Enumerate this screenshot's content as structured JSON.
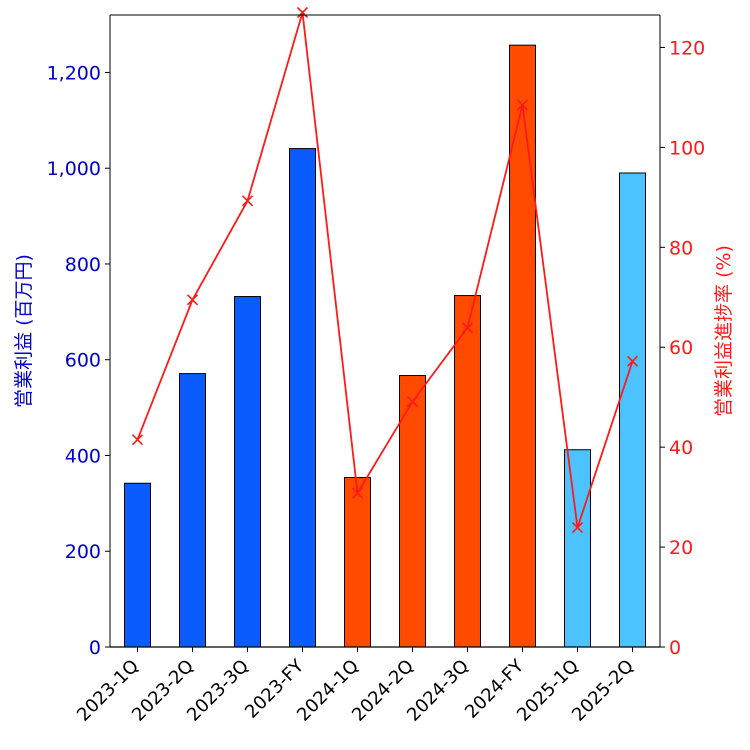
{
  "chart_data": {
    "type": "bar",
    "categories": [
      "2023-1Q",
      "2023-2Q",
      "2023-3Q",
      "2023-FY",
      "2024-1Q",
      "2024-2Q",
      "2024-3Q",
      "2024-FY",
      "2025-1Q",
      "2025-2Q"
    ],
    "series": [
      {
        "name": "営業利益 (百万円)",
        "axis": "left",
        "chart_type": "bar",
        "values": [
          342,
          571,
          732,
          1041,
          354,
          567,
          734,
          1257,
          412,
          990
        ],
        "bar_colors": [
          "#0a5cff",
          "#0a5cff",
          "#0a5cff",
          "#0a5cff",
          "#ff4a00",
          "#ff4a00",
          "#ff4a00",
          "#ff4a00",
          "#4cc3ff",
          "#4cc3ff"
        ]
      },
      {
        "name": "営業利益進捗率 (%)",
        "axis": "right",
        "chart_type": "line",
        "marker": "x",
        "color": "#ff1a1a",
        "values": [
          41.5,
          69.5,
          89.3,
          127,
          30.8,
          49.1,
          63.9,
          108.5,
          23.9,
          57.2
        ]
      }
    ],
    "left_axis": {
      "label": "営業利益 (百万円)",
      "ylim": [
        0,
        1320
      ],
      "ticks": [
        0,
        200,
        400,
        600,
        800,
        1000,
        1200
      ],
      "tick_labels": [
        "0",
        "200",
        "400",
        "600",
        "800",
        "1,000",
        "1,200"
      ],
      "color": "#0000cc"
    },
    "right_axis": {
      "label": "営業利益進捗率 (%)",
      "ylim": [
        0,
        126.5
      ],
      "ticks": [
        0,
        20,
        40,
        60,
        80,
        100,
        120
      ],
      "tick_labels": [
        "0",
        "20",
        "40",
        "60",
        "80",
        "100",
        "120"
      ],
      "color": "#ff1a1a"
    },
    "grid": false,
    "legend": "none",
    "title": ""
  }
}
